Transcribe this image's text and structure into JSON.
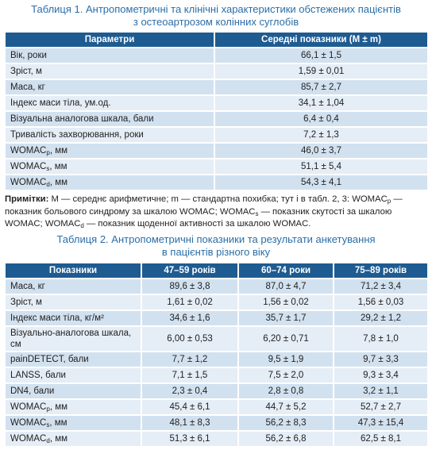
{
  "table1": {
    "title": [
      "Таблиця 1.  Антропометричні та клінічні характеристики обстежених пацієнтів",
      "з остеоартрозом колінних суглобів"
    ],
    "header": [
      "Параметри",
      "Середні показники (M ± m)"
    ],
    "rows": [
      [
        "Вік, роки",
        "66,1 ± 1,5"
      ],
      [
        "Зріст, м",
        "1,59 ± 0,01"
      ],
      [
        "Маса, кг",
        "85,7 ± 2,7"
      ],
      [
        "Індекс маси тіла, ум.од.",
        "34,1 ± 1,04"
      ],
      [
        "Візуальна аналогова шкала, бали",
        "6,4 ± 0,4"
      ],
      [
        "Тривалість захворювання, роки",
        "7,2 ± 1,3"
      ],
      [
        {
          "text": "WOMAC",
          "sub": "p",
          "rest": ", мм"
        },
        "46,0 ± 3,7"
      ],
      [
        {
          "text": "WOMAC",
          "sub": "s",
          "rest": ", мм"
        },
        "51,1 ± 5,4"
      ],
      [
        {
          "text": "WOMAC",
          "sub": "d",
          "rest": ", мм"
        },
        "54,3 ± 4,1"
      ]
    ]
  },
  "notes": {
    "label": "Примітки:",
    "parts": [
      {
        "text": " M — середнє арифметичне; m — стандартна похибка; тут і в табл. 2, 3: WOMAC"
      },
      {
        "sub": "p"
      },
      {
        "text": " — показник больового синдрому за шкалою WOMAC; WOMAC"
      },
      {
        "sub": "s"
      },
      {
        "text": " — показник скутості за шкалою WOMAC; WOMAC"
      },
      {
        "sub": "d"
      },
      {
        "text": " — показник щоденної активності за шкалою WOMAC."
      }
    ]
  },
  "table2": {
    "title": [
      "Таблиця 2.  Антропометричні показники та результати анкетування",
      "в пацієнтів різного віку"
    ],
    "header": [
      "Показники",
      "47–59 років",
      "60–74 роки",
      "75–89 років"
    ],
    "rows": [
      [
        "Маса, кг",
        "89,6 ± 3,8",
        "87,0 ± 4,7",
        "71,2 ± 3,4"
      ],
      [
        "Зріст, м",
        "1,61 ± 0,02",
        "1,56 ± 0,02",
        "1,56 ± 0,03"
      ],
      [
        "Індекс маси тіла, кг/м²",
        "34,6 ± 1,6",
        "35,7 ± 1,7",
        "29,2 ± 1,2"
      ],
      [
        "Візуально-аналогова шкала, см",
        "6,00 ± 0,53",
        "6,20 ± 0,71",
        "7,8 ± 1,0"
      ],
      [
        "painDETECT, бали",
        "7,7 ± 1,2",
        "9,5 ± 1,9",
        "9,7 ± 3,3"
      ],
      [
        "LANSS, бали",
        "7,1 ± 1,5",
        "7,5 ± 2,0",
        "9,3 ± 3,4"
      ],
      [
        "DN4, бали",
        "2,3 ± 0,4",
        "2,8 ± 0,8",
        "3,2 ± 1,1"
      ],
      [
        {
          "text": "WOMAC",
          "sub": "p",
          "rest": ", мм"
        },
        "45,4 ± 6,1",
        "44,7 ± 5,2",
        "52,7 ± 2,7"
      ],
      [
        {
          "text": "WOMAC",
          "sub": "s",
          "rest": ", мм"
        },
        "48,1 ± 8,3",
        "56,2 ± 8,3",
        "47,3 ± 15,4"
      ],
      [
        {
          "text": "WOMAC",
          "sub": "d",
          "rest": ", мм"
        },
        "51,3 ± 6,1",
        "56,2 ± 6,8",
        "62,5 ± 8,1"
      ]
    ]
  }
}
